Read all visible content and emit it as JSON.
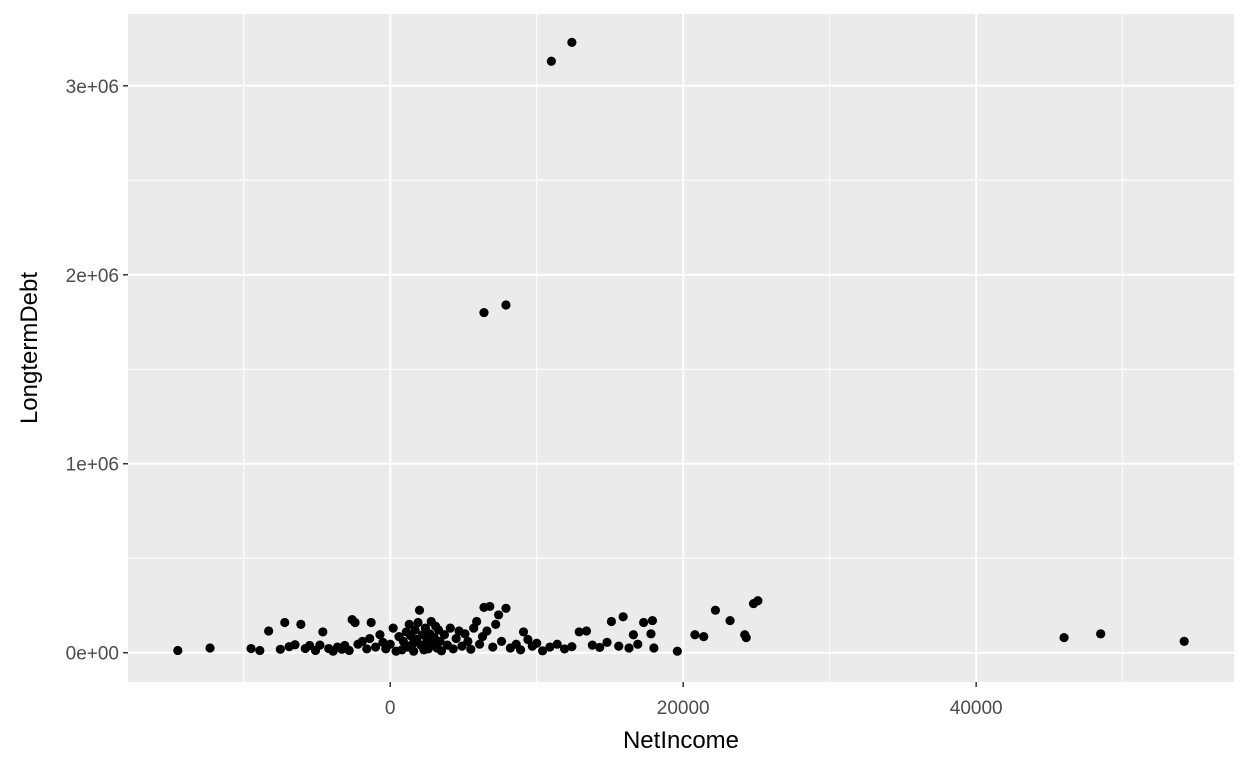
{
  "chart_data": {
    "type": "scatter",
    "title": "",
    "xlabel": "NetIncome",
    "ylabel": "LongtermDebt",
    "xlim": [
      -17900,
      57600
    ],
    "ylim": [
      -155000,
      3380000
    ],
    "x_ticks": [
      0,
      20000,
      40000
    ],
    "x_tick_labels": [
      "0",
      "20000",
      "40000"
    ],
    "x_minor_ticks": [
      -10000,
      10000,
      30000,
      50000
    ],
    "y_ticks": [
      0,
      1000000,
      2000000,
      3000000
    ],
    "y_tick_labels": [
      "0e+00",
      "1e+06",
      "2e+06",
      "3e+06"
    ],
    "y_minor_ticks": [
      500000,
      1500000,
      2500000
    ],
    "grid": true,
    "colors": {
      "panel": "#ebebeb",
      "grid": "#ffffff",
      "point": "#000000"
    },
    "points": [
      [
        -14500,
        12000
      ],
      [
        -12300,
        25000
      ],
      [
        -9500,
        22000
      ],
      [
        -8900,
        12000
      ],
      [
        -8300,
        115000
      ],
      [
        -7500,
        18000
      ],
      [
        -7200,
        160000
      ],
      [
        -6900,
        32000
      ],
      [
        -6500,
        42000
      ],
      [
        -6100,
        150000
      ],
      [
        -5800,
        22000
      ],
      [
        -5500,
        38000
      ],
      [
        -5100,
        12000
      ],
      [
        -4800,
        40000
      ],
      [
        -4600,
        110000
      ],
      [
        -4200,
        22000
      ],
      [
        -3900,
        8000
      ],
      [
        -3600,
        30000
      ],
      [
        -3300,
        18000
      ],
      [
        -3100,
        38000
      ],
      [
        -2800,
        12000
      ],
      [
        -2600,
        175000
      ],
      [
        -2400,
        160000
      ],
      [
        -2200,
        45000
      ],
      [
        -1900,
        60000
      ],
      [
        -1600,
        20000
      ],
      [
        -1400,
        75000
      ],
      [
        -1300,
        160000
      ],
      [
        -1000,
        30000
      ],
      [
        -700,
        95000
      ],
      [
        -500,
        55000
      ],
      [
        -300,
        20000
      ],
      [
        0,
        45000
      ],
      [
        200,
        130000
      ],
      [
        400,
        8000
      ],
      [
        600,
        85000
      ],
      [
        800,
        15000
      ],
      [
        900,
        60000
      ],
      [
        1100,
        110000
      ],
      [
        1200,
        30000
      ],
      [
        1300,
        150000
      ],
      [
        1400,
        90000
      ],
      [
        1500,
        45000
      ],
      [
        1600,
        8000
      ],
      [
        1700,
        120000
      ],
      [
        1800,
        70000
      ],
      [
        1900,
        160000
      ],
      [
        2000,
        225000
      ],
      [
        2100,
        40000
      ],
      [
        2200,
        95000
      ],
      [
        2300,
        15000
      ],
      [
        2400,
        130000
      ],
      [
        2500,
        60000
      ],
      [
        2600,
        20000
      ],
      [
        2700,
        100000
      ],
      [
        2800,
        165000
      ],
      [
        2900,
        50000
      ],
      [
        3000,
        80000
      ],
      [
        3100,
        140000
      ],
      [
        3200,
        25000
      ],
      [
        3300,
        120000
      ],
      [
        3400,
        60000
      ],
      [
        3500,
        10000
      ],
      [
        3700,
        95000
      ],
      [
        3900,
        40000
      ],
      [
        4100,
        130000
      ],
      [
        4300,
        20000
      ],
      [
        4500,
        75000
      ],
      [
        4700,
        115000
      ],
      [
        4900,
        35000
      ],
      [
        5100,
        100000
      ],
      [
        5300,
        60000
      ],
      [
        5500,
        18000
      ],
      [
        5700,
        130000
      ],
      [
        5900,
        165000
      ],
      [
        6100,
        45000
      ],
      [
        6300,
        85000
      ],
      [
        6400,
        240000
      ],
      [
        6600,
        115000
      ],
      [
        6800,
        245000
      ],
      [
        7000,
        30000
      ],
      [
        7200,
        150000
      ],
      [
        7400,
        200000
      ],
      [
        7600,
        60000
      ],
      [
        7900,
        235000
      ],
      [
        8200,
        25000
      ],
      [
        8600,
        45000
      ],
      [
        8900,
        15000
      ],
      [
        9100,
        110000
      ],
      [
        9400,
        70000
      ],
      [
        9700,
        35000
      ],
      [
        10000,
        50000
      ],
      [
        10400,
        10000
      ],
      [
        10900,
        30000
      ],
      [
        11400,
        45000
      ],
      [
        11900,
        20000
      ],
      [
        12400,
        32000
      ],
      [
        12900,
        110000
      ],
      [
        13400,
        115000
      ],
      [
        13800,
        40000
      ],
      [
        14300,
        28000
      ],
      [
        14800,
        55000
      ],
      [
        15100,
        165000
      ],
      [
        15600,
        35000
      ],
      [
        15900,
        190000
      ],
      [
        16300,
        25000
      ],
      [
        16600,
        95000
      ],
      [
        16900,
        45000
      ],
      [
        17300,
        160000
      ],
      [
        17800,
        100000
      ],
      [
        17900,
        170000
      ],
      [
        18000,
        25000
      ],
      [
        19600,
        8000
      ],
      [
        20800,
        95000
      ],
      [
        21400,
        85000
      ],
      [
        22200,
        225000
      ],
      [
        23200,
        170000
      ],
      [
        24200,
        95000
      ],
      [
        24300,
        80000
      ],
      [
        24800,
        260000
      ],
      [
        25100,
        275000
      ],
      [
        46000,
        80000
      ],
      [
        48500,
        100000
      ],
      [
        54200,
        60000
      ],
      [
        6400,
        1800000
      ],
      [
        7900,
        1840000
      ],
      [
        11000,
        3130000
      ],
      [
        12400,
        3230000
      ]
    ]
  }
}
